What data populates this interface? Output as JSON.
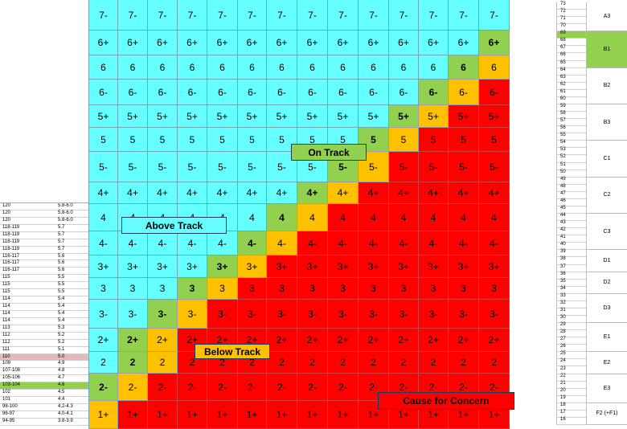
{
  "colors": {
    "cyan": "#66ffff",
    "green": "#92d050",
    "orange": "#ffc000",
    "red": "#ff0000",
    "left_highlight_pink": "#e6b8b7",
    "left_highlight_green": "#92d050"
  },
  "grid": {
    "rows": [
      {
        "label": "7-",
        "cells": [
          "c",
          "c",
          "c",
          "c",
          "c",
          "c",
          "c",
          "c",
          "c",
          "c",
          "c",
          "c",
          "c",
          "c"
        ]
      },
      {
        "label": "6+",
        "cells": [
          "c",
          "c",
          "c",
          "c",
          "c",
          "c",
          "c",
          "c",
          "c",
          "c",
          "c",
          "c",
          "c",
          "g"
        ]
      },
      {
        "label": "6",
        "cells": [
          "c",
          "c",
          "c",
          "c",
          "c",
          "c",
          "c",
          "c",
          "c",
          "c",
          "c",
          "c",
          "g",
          "o"
        ]
      },
      {
        "label": "6-",
        "cells": [
          "c",
          "c",
          "c",
          "c",
          "c",
          "c",
          "c",
          "c",
          "c",
          "c",
          "c",
          "g",
          "o",
          "r"
        ]
      },
      {
        "label": "5+",
        "cells": [
          "c",
          "c",
          "c",
          "c",
          "c",
          "c",
          "c",
          "c",
          "c",
          "c",
          "g",
          "o",
          "r",
          "r"
        ]
      },
      {
        "label": "5",
        "cells": [
          "c",
          "c",
          "c",
          "c",
          "c",
          "c",
          "c",
          "c",
          "c",
          "g",
          "o",
          "r",
          "r",
          "r"
        ]
      },
      {
        "label": "5-",
        "cells": [
          "c",
          "c",
          "c",
          "c",
          "c",
          "c",
          "c",
          "c",
          "g",
          "o",
          "r",
          "r",
          "r",
          "r"
        ]
      },
      {
        "label": "4+",
        "cells": [
          "c",
          "c",
          "c",
          "c",
          "c",
          "c",
          "c",
          "g",
          "o",
          "r",
          "r",
          "r",
          "r",
          "r"
        ]
      },
      {
        "label": "4",
        "cells": [
          "c",
          "c",
          "c",
          "c",
          "c",
          "c",
          "g",
          "o",
          "r",
          "r",
          "r",
          "r",
          "r",
          "r"
        ]
      },
      {
        "label": "4-",
        "cells": [
          "c",
          "c",
          "c",
          "c",
          "c",
          "g",
          "o",
          "r",
          "r",
          "r",
          "r",
          "r",
          "r",
          "r"
        ]
      },
      {
        "label": "3+",
        "cells": [
          "c",
          "c",
          "c",
          "c",
          "g",
          "o",
          "r",
          "r",
          "r",
          "r",
          "r",
          "r",
          "r",
          "r"
        ]
      },
      {
        "label": "3",
        "cells": [
          "c",
          "c",
          "c",
          "g",
          "o",
          "r",
          "r",
          "r",
          "r",
          "r",
          "r",
          "r",
          "r",
          "r"
        ]
      },
      {
        "label": "3-",
        "cells": [
          "c",
          "c",
          "g",
          "o",
          "r",
          "r",
          "r",
          "r",
          "r",
          "r",
          "r",
          "r",
          "r",
          "r"
        ]
      },
      {
        "label": "2+",
        "cells": [
          "c",
          "g",
          "o",
          "r",
          "r",
          "r",
          "r",
          "r",
          "r",
          "r",
          "r",
          "r",
          "r",
          "r"
        ]
      },
      {
        "label": "2",
        "cells": [
          "c",
          "g",
          "o",
          "r",
          "r",
          "r",
          "r",
          "r",
          "r",
          "r",
          "r",
          "r",
          "r",
          "r"
        ]
      },
      {
        "label": "2-",
        "cells": [
          "g",
          "o",
          "r",
          "r",
          "r",
          "r",
          "r",
          "r",
          "r",
          "r",
          "r",
          "r",
          "r",
          "r"
        ]
      },
      {
        "label": "1+",
        "cells": [
          "o",
          "r",
          "r",
          "r",
          "r",
          "r",
          "r",
          "r",
          "r",
          "r",
          "r",
          "r",
          "r",
          "r"
        ]
      }
    ]
  },
  "labels": {
    "above_track": "Above Track",
    "on_track": "On Track",
    "below_track": "Below Track",
    "cause_for_concern": "Cause for Concern"
  },
  "left_table": [
    {
      "a": "120",
      "b": "5.8-6.0"
    },
    {
      "a": "120",
      "b": "5.8-6.0"
    },
    {
      "a": "120",
      "b": "5.8-6.0"
    },
    {
      "a": "118-119",
      "b": "5.7"
    },
    {
      "a": "118-119",
      "b": "5.7"
    },
    {
      "a": "118-119",
      "b": "5.7"
    },
    {
      "a": "118-119",
      "b": "5.7"
    },
    {
      "a": "116-117",
      "b": "5.6"
    },
    {
      "a": "116-117",
      "b": "5.6"
    },
    {
      "a": "116-117",
      "b": "5.6"
    },
    {
      "a": "115",
      "b": "5.5"
    },
    {
      "a": "115",
      "b": "5.5"
    },
    {
      "a": "115",
      "b": "5.5"
    },
    {
      "a": "114",
      "b": "5.4"
    },
    {
      "a": "114",
      "b": "5.4"
    },
    {
      "a": "114",
      "b": "5.4"
    },
    {
      "a": "114",
      "b": "5.4"
    },
    {
      "a": "113",
      "b": "5.3"
    },
    {
      "a": "112",
      "b": "5.2"
    },
    {
      "a": "112",
      "b": "5.2"
    },
    {
      "a": "111",
      "b": "5.1"
    },
    {
      "a": "110",
      "b": "5.0",
      "hl": "pink"
    },
    {
      "a": "109",
      "b": "4.9"
    },
    {
      "a": "107-108",
      "b": "4.8"
    },
    {
      "a": "105-106",
      "b": "4.7"
    },
    {
      "a": "103-104",
      "b": "4.6",
      "hl": "green"
    },
    {
      "a": "102",
      "b": "4.5"
    },
    {
      "a": "101",
      "b": "4.4"
    },
    {
      "a": "98-100",
      "b": "4.2-4.3"
    },
    {
      "a": "96-97",
      "b": "4.0-4.1"
    },
    {
      "a": "94-95",
      "b": "3.8-3.9"
    }
  ],
  "right_numbers": [
    "73",
    "72",
    "71",
    "70",
    "69",
    "68",
    "67",
    "66",
    "65",
    "64",
    "63",
    "62",
    "61",
    "60",
    "59",
    "58",
    "57",
    "56",
    "55",
    "54",
    "53",
    "52",
    "51",
    "50",
    "49",
    "48",
    "47",
    "46",
    "45",
    "44",
    "43",
    "42",
    "41",
    "40",
    "39",
    "38",
    "37",
    "36",
    "35",
    "34",
    "33",
    "32",
    "31",
    "30",
    "29",
    "28",
    "27",
    "26",
    "25",
    "24",
    "23",
    "22",
    "21",
    "20",
    "19",
    "18",
    "17",
    "16"
  ],
  "right_groups": [
    {
      "name": "A3",
      "from": 73,
      "to": 70
    },
    {
      "name": "B1",
      "from": 69,
      "to": 65,
      "hl": "green"
    },
    {
      "name": "B2",
      "from": 64,
      "to": 60
    },
    {
      "name": "B3",
      "from": 59,
      "to": 55
    },
    {
      "name": "C1",
      "from": 54,
      "to": 50
    },
    {
      "name": "C2",
      "from": 49,
      "to": 45
    },
    {
      "name": "C3",
      "from": 44,
      "to": 40
    },
    {
      "name": "D1",
      "from": 39,
      "to": 37
    },
    {
      "name": "D2",
      "from": 36,
      "to": 34
    },
    {
      "name": "D3",
      "from": 33,
      "to": 30
    },
    {
      "name": "E1",
      "from": 29,
      "to": 26
    },
    {
      "name": "E2",
      "from": 25,
      "to": 23
    },
    {
      "name": "E3",
      "from": 22,
      "to": 19
    },
    {
      "name": "F2 (+F1)",
      "from": 18,
      "to": 16
    }
  ]
}
